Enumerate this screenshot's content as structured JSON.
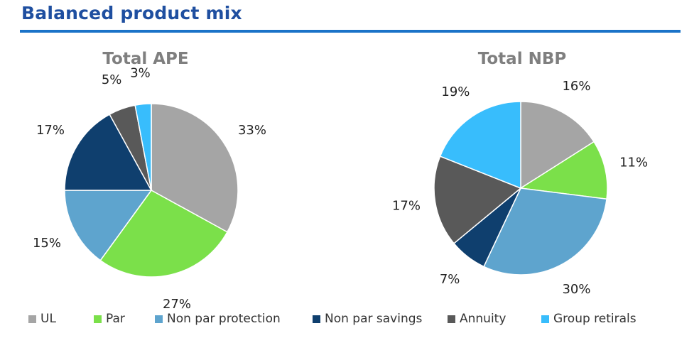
{
  "header": {
    "title": "Balanced product mix"
  },
  "colors": {
    "UL": "#a5a5a5",
    "Par": "#7be04a",
    "Non par protection": "#5ea4ce",
    "Non par savings": "#0f3f6e",
    "Annuity": "#595959",
    "Group retirals": "#38bdfc"
  },
  "legend": {
    "items": [
      "UL",
      "Par",
      "Non par protection",
      "Non par savings",
      "Annuity",
      "Group retirals"
    ]
  },
  "chart_data": [
    {
      "type": "pie",
      "title": "Total APE",
      "categories": [
        "UL",
        "Par",
        "Non par protection",
        "Non par savings",
        "Annuity",
        "Group retirals"
      ],
      "values": [
        33,
        27,
        15,
        17,
        5,
        3
      ],
      "labels": [
        "33%",
        "27%",
        "15%",
        "17%",
        "5%",
        "3%"
      ]
    },
    {
      "type": "pie",
      "title": "Total NBP",
      "categories": [
        "UL",
        "Par",
        "Non par protection",
        "Non par savings",
        "Annuity",
        "Group retirals"
      ],
      "values": [
        16,
        11,
        30,
        7,
        17,
        19
      ],
      "labels": [
        "16%",
        "11%",
        "30%",
        "7%",
        "17%",
        "19%"
      ]
    }
  ]
}
